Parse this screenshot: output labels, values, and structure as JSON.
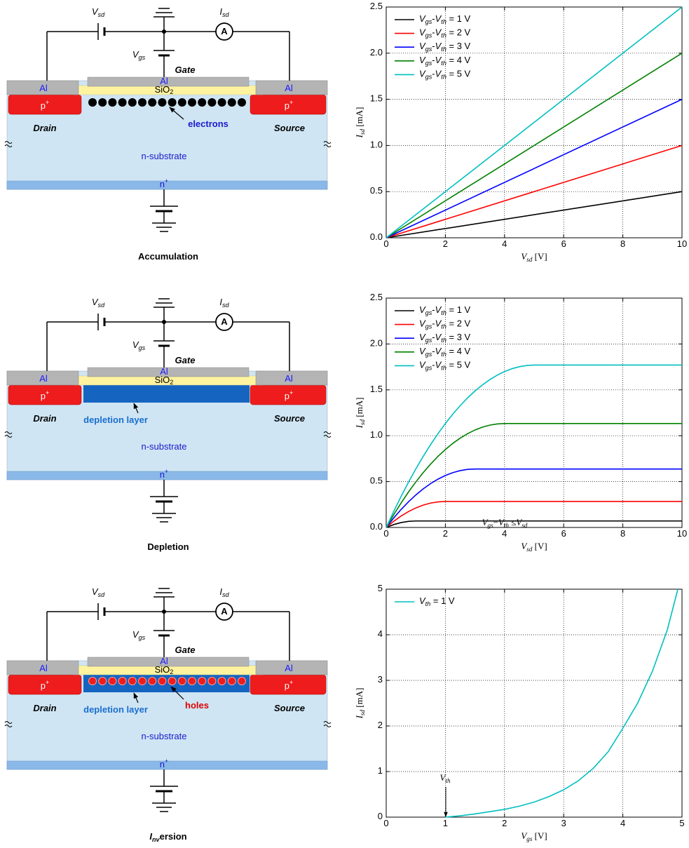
{
  "diagrams": [
    {
      "labels": {
        "vsd": "Vsd",
        "isd": "Isd",
        "ammeter": "A",
        "vgs": "Vgs",
        "gate": "Gate",
        "gate_metal": "Al",
        "oxide": "SiO2",
        "drain_metal": "Al",
        "source_metal": "Al",
        "drain_doping": "p+",
        "source_doping": "p+",
        "drain": "Drain",
        "source": "Source",
        "substrate": "n-substrate",
        "back_contact": "n+"
      },
      "carriers": "electrons",
      "caption": "Accumulation"
    },
    {
      "labels": {
        "vsd": "Vsd",
        "isd": "Isd",
        "ammeter": "A",
        "vgs": "Vgs",
        "gate": "Gate",
        "gate_metal": "Al",
        "oxide": "SiO2",
        "drain_metal": "Al",
        "source_metal": "Al",
        "drain_doping": "p+",
        "source_doping": "p+",
        "drain": "Drain",
        "source": "Source",
        "substrate": "n-substrate",
        "back_contact": "n+"
      },
      "layer": "depletion layer",
      "caption": "Depletion"
    },
    {
      "labels": {
        "vsd": "Vsd",
        "isd": "Isd",
        "ammeter": "A",
        "vgs": "Vgs",
        "gate": "Gate",
        "gate_metal": "Al",
        "oxide": "SiO2",
        "drain_metal": "Al",
        "source_metal": "Al",
        "drain_doping": "p+",
        "source_doping": "p+",
        "drain": "Drain",
        "source": "Source",
        "substrate": "n-substrate",
        "back_contact": "n+"
      },
      "layer": "depletion layer",
      "carriers": "holes",
      "caption": "Inversion"
    }
  ],
  "chart_data": [
    {
      "type": "line",
      "xlabel": "Vsd [V]",
      "ylabel": "Isd [mA]",
      "grid": true,
      "legend": "upper left",
      "xlim": [
        0,
        10
      ],
      "ylim": [
        0,
        2.5
      ],
      "xticks": [
        0,
        2,
        4,
        6,
        8,
        10
      ],
      "yticks": [
        {
          "value": 0,
          "label": "0.0"
        },
        0.5,
        {
          "value": 1,
          "label": "1.0"
        },
        1.5,
        {
          "value": 2,
          "label": "2.0"
        },
        2.5
      ],
      "x": [
        0,
        10
      ],
      "series": [
        {
          "name": "Vgs-Vth = 1 V",
          "color": "#000000",
          "values": [
            0,
            0.5
          ]
        },
        {
          "name": "Vgs-Vth = 2 V",
          "color": "#ff0000",
          "values": [
            0,
            1
          ]
        },
        {
          "name": "Vgs-Vth = 3 V",
          "color": "#0000ff",
          "values": [
            0,
            1.5
          ]
        },
        {
          "name": "Vgs-Vth = 4 V",
          "color": "#008000",
          "values": [
            0,
            2
          ]
        },
        {
          "name": "Vgs-Vth = 5 V",
          "color": "#00bfbf",
          "values": [
            0,
            2.5
          ]
        }
      ]
    },
    {
      "type": "line",
      "xlabel": "Vsd [V]",
      "ylabel": "Isd [mA]",
      "grid": true,
      "legend": "upper left",
      "xlim": [
        0,
        10
      ],
      "ylim": [
        0,
        2.5
      ],
      "xticks": [
        0,
        2,
        4,
        6,
        8,
        10
      ],
      "yticks": [
        {
          "value": 0,
          "label": "0.0"
        },
        0.5,
        {
          "value": 1,
          "label": "1.0"
        },
        1.5,
        {
          "value": 2,
          "label": "2.0"
        },
        2.5
      ],
      "x": [
        0,
        0.25,
        0.5,
        0.75,
        1,
        1.25,
        1.5,
        1.75,
        2,
        2.25,
        2.5,
        2.75,
        3,
        3.25,
        3.5,
        3.75,
        4,
        4.25,
        4.5,
        4.75,
        5,
        6,
        7,
        8,
        9,
        10
      ],
      "series": [
        {
          "name": "Vgs-Vth = 1 V",
          "color": "#000000",
          "values": [
            0,
            0.031,
            0.0531,
            0.0664,
            0.0708,
            0.0708,
            0.0708,
            0.0708,
            0.0708,
            0.0708,
            0.0708,
            0.0708,
            0.0708,
            0.0708,
            0.0708,
            0.0708,
            0.0708,
            0.0708,
            0.0708,
            0.0708,
            0.0708,
            0.0708,
            0.0708,
            0.0708,
            0.0708,
            0.0708
          ]
        },
        {
          "name": "Vgs-Vth = 2 V",
          "color": "#ff0000",
          "values": [
            0,
            0.0664,
            0.1239,
            0.1726,
            0.2124,
            0.2434,
            0.2655,
            0.2788,
            0.2832,
            0.2832,
            0.2832,
            0.2832,
            0.2832,
            0.2832,
            0.2832,
            0.2832,
            0.2832,
            0.2832,
            0.2832,
            0.2832,
            0.2832,
            0.2832,
            0.2832,
            0.2832,
            0.2832,
            0.2832
          ]
        },
        {
          "name": "Vgs-Vth = 3 V",
          "color": "#0000ff",
          "values": [
            0,
            0.1018,
            0.1947,
            0.2788,
            0.354,
            0.4204,
            0.4779,
            0.5266,
            0.5664,
            0.5974,
            0.6195,
            0.6328,
            0.6372,
            0.6372,
            0.6372,
            0.6372,
            0.6372,
            0.6372,
            0.6372,
            0.6372,
            0.6372,
            0.6372,
            0.6372,
            0.6372,
            0.6372,
            0.6372
          ]
        },
        {
          "name": "Vgs-Vth = 4 V",
          "color": "#008000",
          "values": [
            0,
            0.1372,
            0.2655,
            0.385,
            0.4956,
            0.5974,
            0.6903,
            0.7744,
            0.8496,
            0.916,
            0.9735,
            1.0222,
            1.062,
            1.093,
            1.1151,
            1.1284,
            1.1328,
            1.1328,
            1.1328,
            1.1328,
            1.1328,
            1.1328,
            1.1328,
            1.1328,
            1.1328,
            1.1328
          ]
        },
        {
          "name": "Vgs-Vth = 5 V",
          "color": "#00bfbf",
          "values": [
            0,
            0.1726,
            0.3363,
            0.4912,
            0.6372,
            0.7744,
            0.9027,
            1.0222,
            1.1328,
            1.2346,
            1.3275,
            1.4116,
            1.4868,
            1.5532,
            1.6107,
            1.6594,
            1.6992,
            1.7302,
            1.7523,
            1.7656,
            1.77,
            1.77,
            1.77,
            1.77,
            1.77,
            1.77
          ]
        }
      ]
    },
    {
      "type": "line",
      "xlabel": "Vgs [V]",
      "ylabel": "Isd [mA]",
      "grid": true,
      "legend": "upper left",
      "xlim": [
        0,
        5
      ],
      "ylim": [
        0,
        5
      ],
      "xticks": [
        0,
        1,
        2,
        3,
        4,
        5
      ],
      "yticks": [
        0,
        1,
        2,
        3,
        4,
        5
      ],
      "x": [
        1,
        1.25,
        1.5,
        1.75,
        2,
        2.25,
        2.5,
        2.75,
        3,
        3.25,
        3.5,
        3.75,
        4,
        4.25,
        4.5,
        4.75,
        4.93
      ],
      "series": [
        {
          "name": "Vth = 1 V",
          "color": "#00bfbf",
          "values": [
            0,
            0.03,
            0.07,
            0.12,
            0.17,
            0.24,
            0.33,
            0.45,
            0.6,
            0.8,
            1.07,
            1.43,
            1.95,
            2.5,
            3.2,
            4.1,
            5
          ]
        }
      ],
      "annotations": [
        "Vgs−Vth ≤Vsd",
        "Vth"
      ]
    }
  ]
}
